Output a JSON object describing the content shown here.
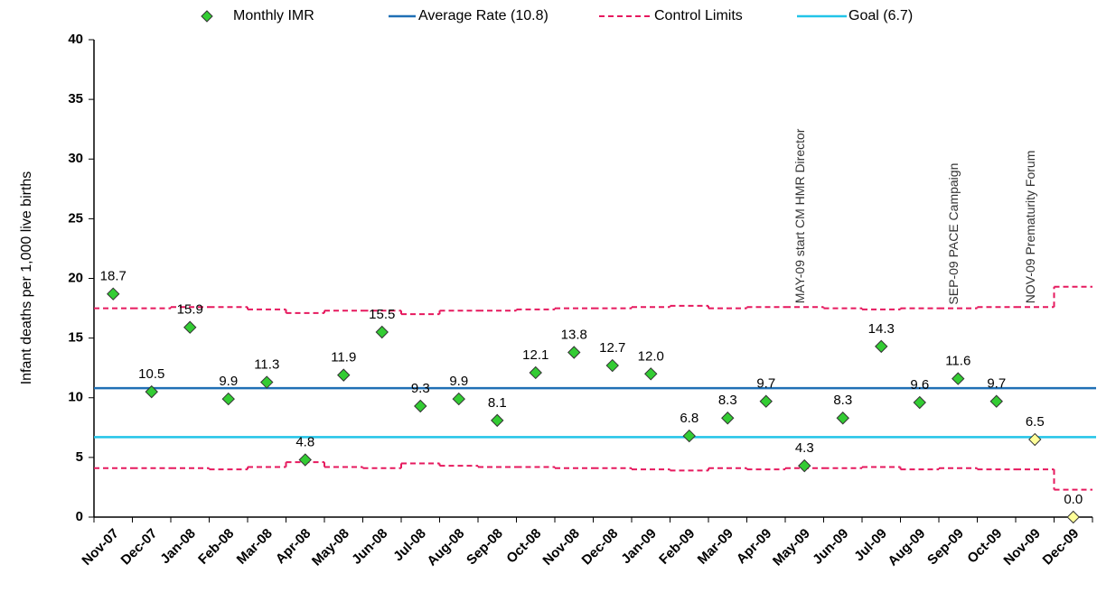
{
  "chart_data": {
    "type": "control",
    "y_label": "Infant deaths per 1,000 live births",
    "categories": [
      "Nov-07",
      "Dec-07",
      "Jan-08",
      "Feb-08",
      "Mar-08",
      "Apr-08",
      "May-08",
      "Jun-08",
      "Jul-08",
      "Aug-08",
      "Sep-08",
      "Oct-08",
      "Nov-08",
      "Dec-08",
      "Jan-09",
      "Feb-09",
      "Mar-09",
      "Apr-09",
      "May-09",
      "Jun-09",
      "Jul-09",
      "Aug-09",
      "Sep-09",
      "Oct-09",
      "Nov-09",
      "Dec-09"
    ],
    "ylim": [
      0,
      40
    ],
    "yticks": [
      0,
      5,
      10,
      15,
      20,
      25,
      30,
      35,
      40
    ],
    "points": {
      "name": "Monthly IMR",
      "color": "#33cc33",
      "values": [
        18.7,
        10.5,
        15.9,
        9.9,
        11.3,
        4.8,
        11.9,
        15.5,
        9.3,
        9.9,
        8.1,
        12.1,
        13.8,
        12.7,
        12.0,
        6.8,
        8.3,
        9.7,
        4.3,
        8.3,
        14.3,
        9.6,
        11.6,
        9.7,
        6.5,
        0.0
      ],
      "value_labels": [
        "18.7",
        "10.5",
        "15.9",
        "9.9",
        "11.3",
        "4.8",
        "11.9",
        "15.5",
        "9.3",
        "9.9",
        "8.1",
        "12.1",
        "13.8",
        "12.7",
        "12.0",
        "6.8",
        "8.3",
        "9.7",
        "4.3",
        "8.3",
        "14.3",
        "9.6",
        "11.6",
        "9.7",
        "6.5",
        "0.0"
      ],
      "colors": [
        "#33cc33",
        "#33cc33",
        "#33cc33",
        "#33cc33",
        "#33cc33",
        "#33cc33",
        "#33cc33",
        "#33cc33",
        "#33cc33",
        "#33cc33",
        "#33cc33",
        "#33cc33",
        "#33cc33",
        "#33cc33",
        "#33cc33",
        "#33cc33",
        "#33cc33",
        "#33cc33",
        "#33cc33",
        "#33cc33",
        "#33cc33",
        "#33cc33",
        "#33cc33",
        "#33cc33",
        "#ffff99",
        "#ffff99"
      ]
    },
    "average": {
      "name": "Average Rate (10.8)",
      "value": 10.8,
      "color": "#1f6fb5"
    },
    "control_limits": {
      "name": "Control Limits",
      "color": "#e6195e",
      "upper": [
        17.5,
        17.5,
        17.6,
        17.6,
        17.4,
        17.1,
        17.3,
        17.3,
        17.0,
        17.3,
        17.3,
        17.4,
        17.5,
        17.5,
        17.6,
        17.7,
        17.5,
        17.6,
        17.6,
        17.5,
        17.4,
        17.5,
        17.5,
        17.6,
        17.6,
        19.3
      ],
      "lower": [
        4.1,
        4.1,
        4.1,
        4.0,
        4.2,
        4.6,
        4.2,
        4.1,
        4.5,
        4.3,
        4.2,
        4.2,
        4.1,
        4.1,
        4.0,
        3.9,
        4.1,
        4.0,
        4.1,
        4.1,
        4.2,
        4.0,
        4.1,
        4.0,
        4.0,
        2.3
      ]
    },
    "goal": {
      "name": "Goal (6.7)",
      "value": 6.7,
      "color": "#22c4e8"
    },
    "annotations": [
      "MAY-09 start CM HMR Director",
      "SEP-09 PACE Campaign",
      "NOV-09 Prematurity Forum"
    ]
  }
}
